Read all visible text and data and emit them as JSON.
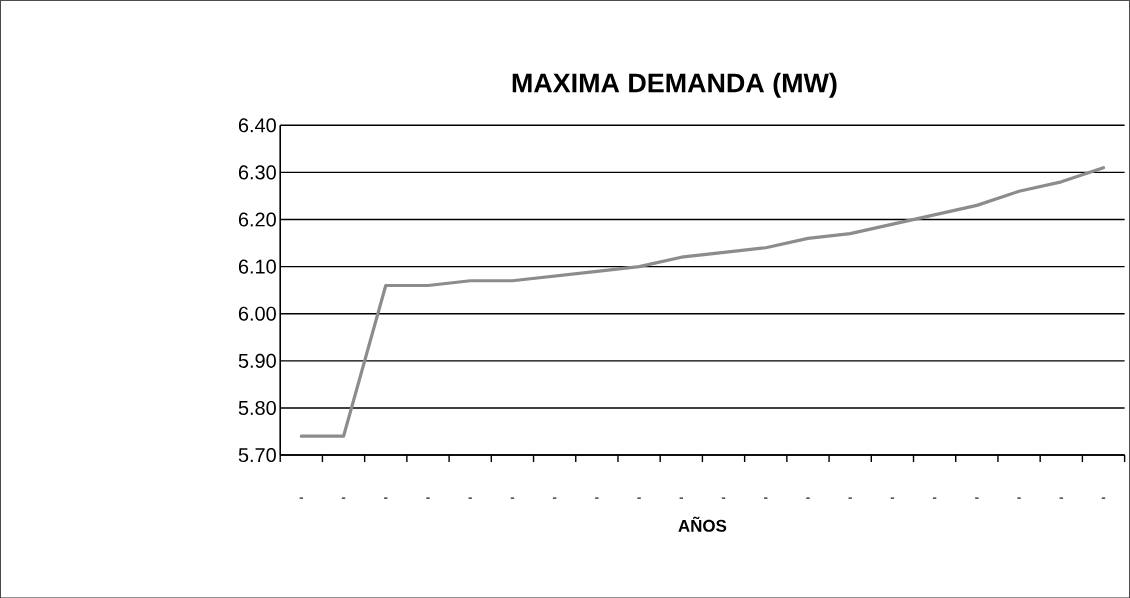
{
  "chart_data": {
    "type": "line",
    "title": "MAXIMA DEMANDA (MW)",
    "xlabel": "AÑOS",
    "categories": [
      "-",
      "-",
      "-",
      "-",
      "-",
      "-",
      "-",
      "-",
      "-",
      "-",
      "-",
      "-",
      "-",
      "-",
      "-",
      "-",
      "-",
      "-",
      "-",
      "-"
    ],
    "series": [
      {
        "color": "#8c8c8c",
        "values": [
          5.74,
          5.74,
          6.06,
          6.06,
          6.07,
          6.07,
          6.08,
          6.09,
          6.1,
          6.12,
          6.13,
          6.14,
          6.16,
          6.17,
          6.19,
          6.21,
          6.23,
          6.26,
          6.28,
          6.31
        ]
      }
    ],
    "ylim": [
      5.7,
      6.4
    ],
    "yticks": [
      {
        "value": 5.7,
        "label": "5.70"
      },
      {
        "value": 5.8,
        "label": "5.80"
      },
      {
        "value": 5.9,
        "label": "5.90"
      },
      {
        "value": 6.0,
        "label": "6.00"
      },
      {
        "value": 6.1,
        "label": "6.10"
      },
      {
        "value": 6.2,
        "label": "6.20"
      },
      {
        "value": 6.3,
        "label": "6.30"
      },
      {
        "value": 6.4,
        "label": "6.40"
      }
    ],
    "grid": "y",
    "marker": "none",
    "line_style": "solid"
  }
}
